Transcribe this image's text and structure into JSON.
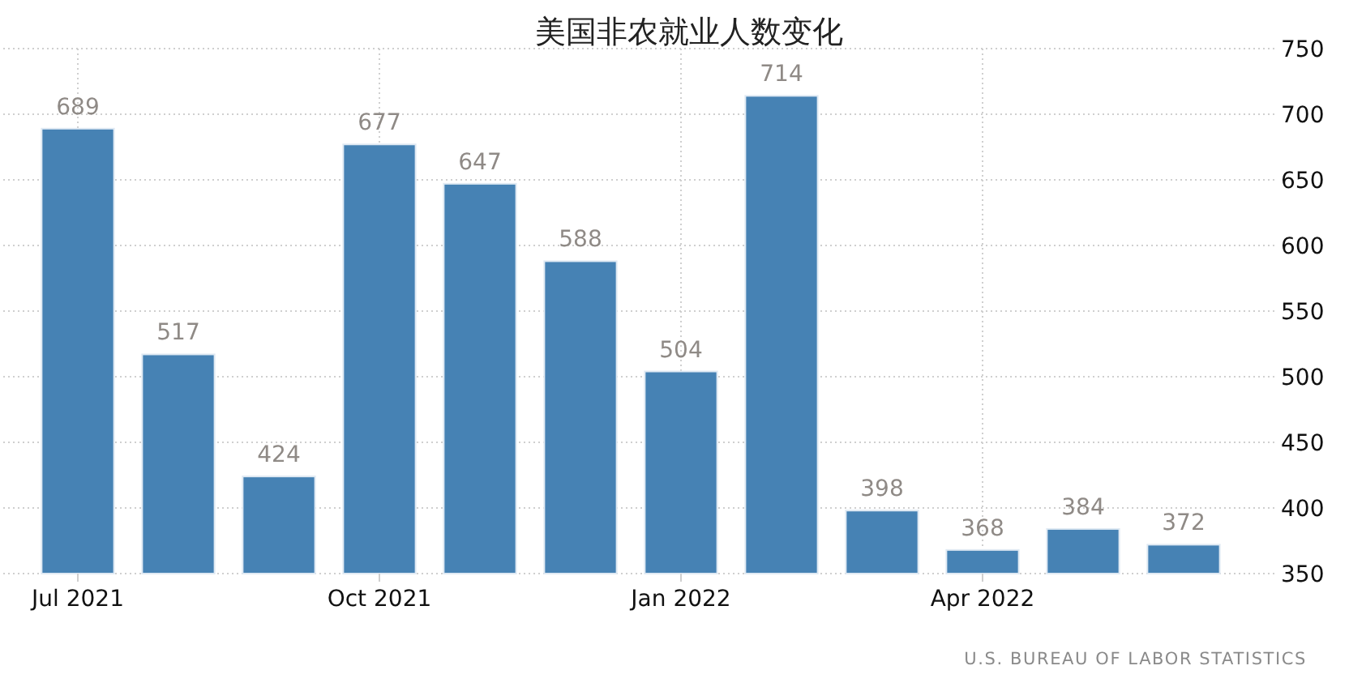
{
  "chart_data": {
    "type": "bar",
    "title": "美国非农就业人数变化",
    "categories": [
      "Jul 2021",
      null,
      null,
      "Oct 2021",
      null,
      null,
      "Jan 2022",
      null,
      null,
      "Apr 2022",
      null,
      null
    ],
    "values": [
      689,
      517,
      424,
      677,
      647,
      588,
      504,
      714,
      398,
      368,
      384,
      372
    ],
    "color": "#4682b4",
    "ylim": [
      350,
      750
    ],
    "yticks": [
      350,
      400,
      450,
      500,
      550,
      600,
      650,
      700,
      750
    ],
    "grid": true,
    "data_labels": true,
    "annotations": [
      "U.S. BUREAU OF LABOR STATISTICS"
    ]
  }
}
